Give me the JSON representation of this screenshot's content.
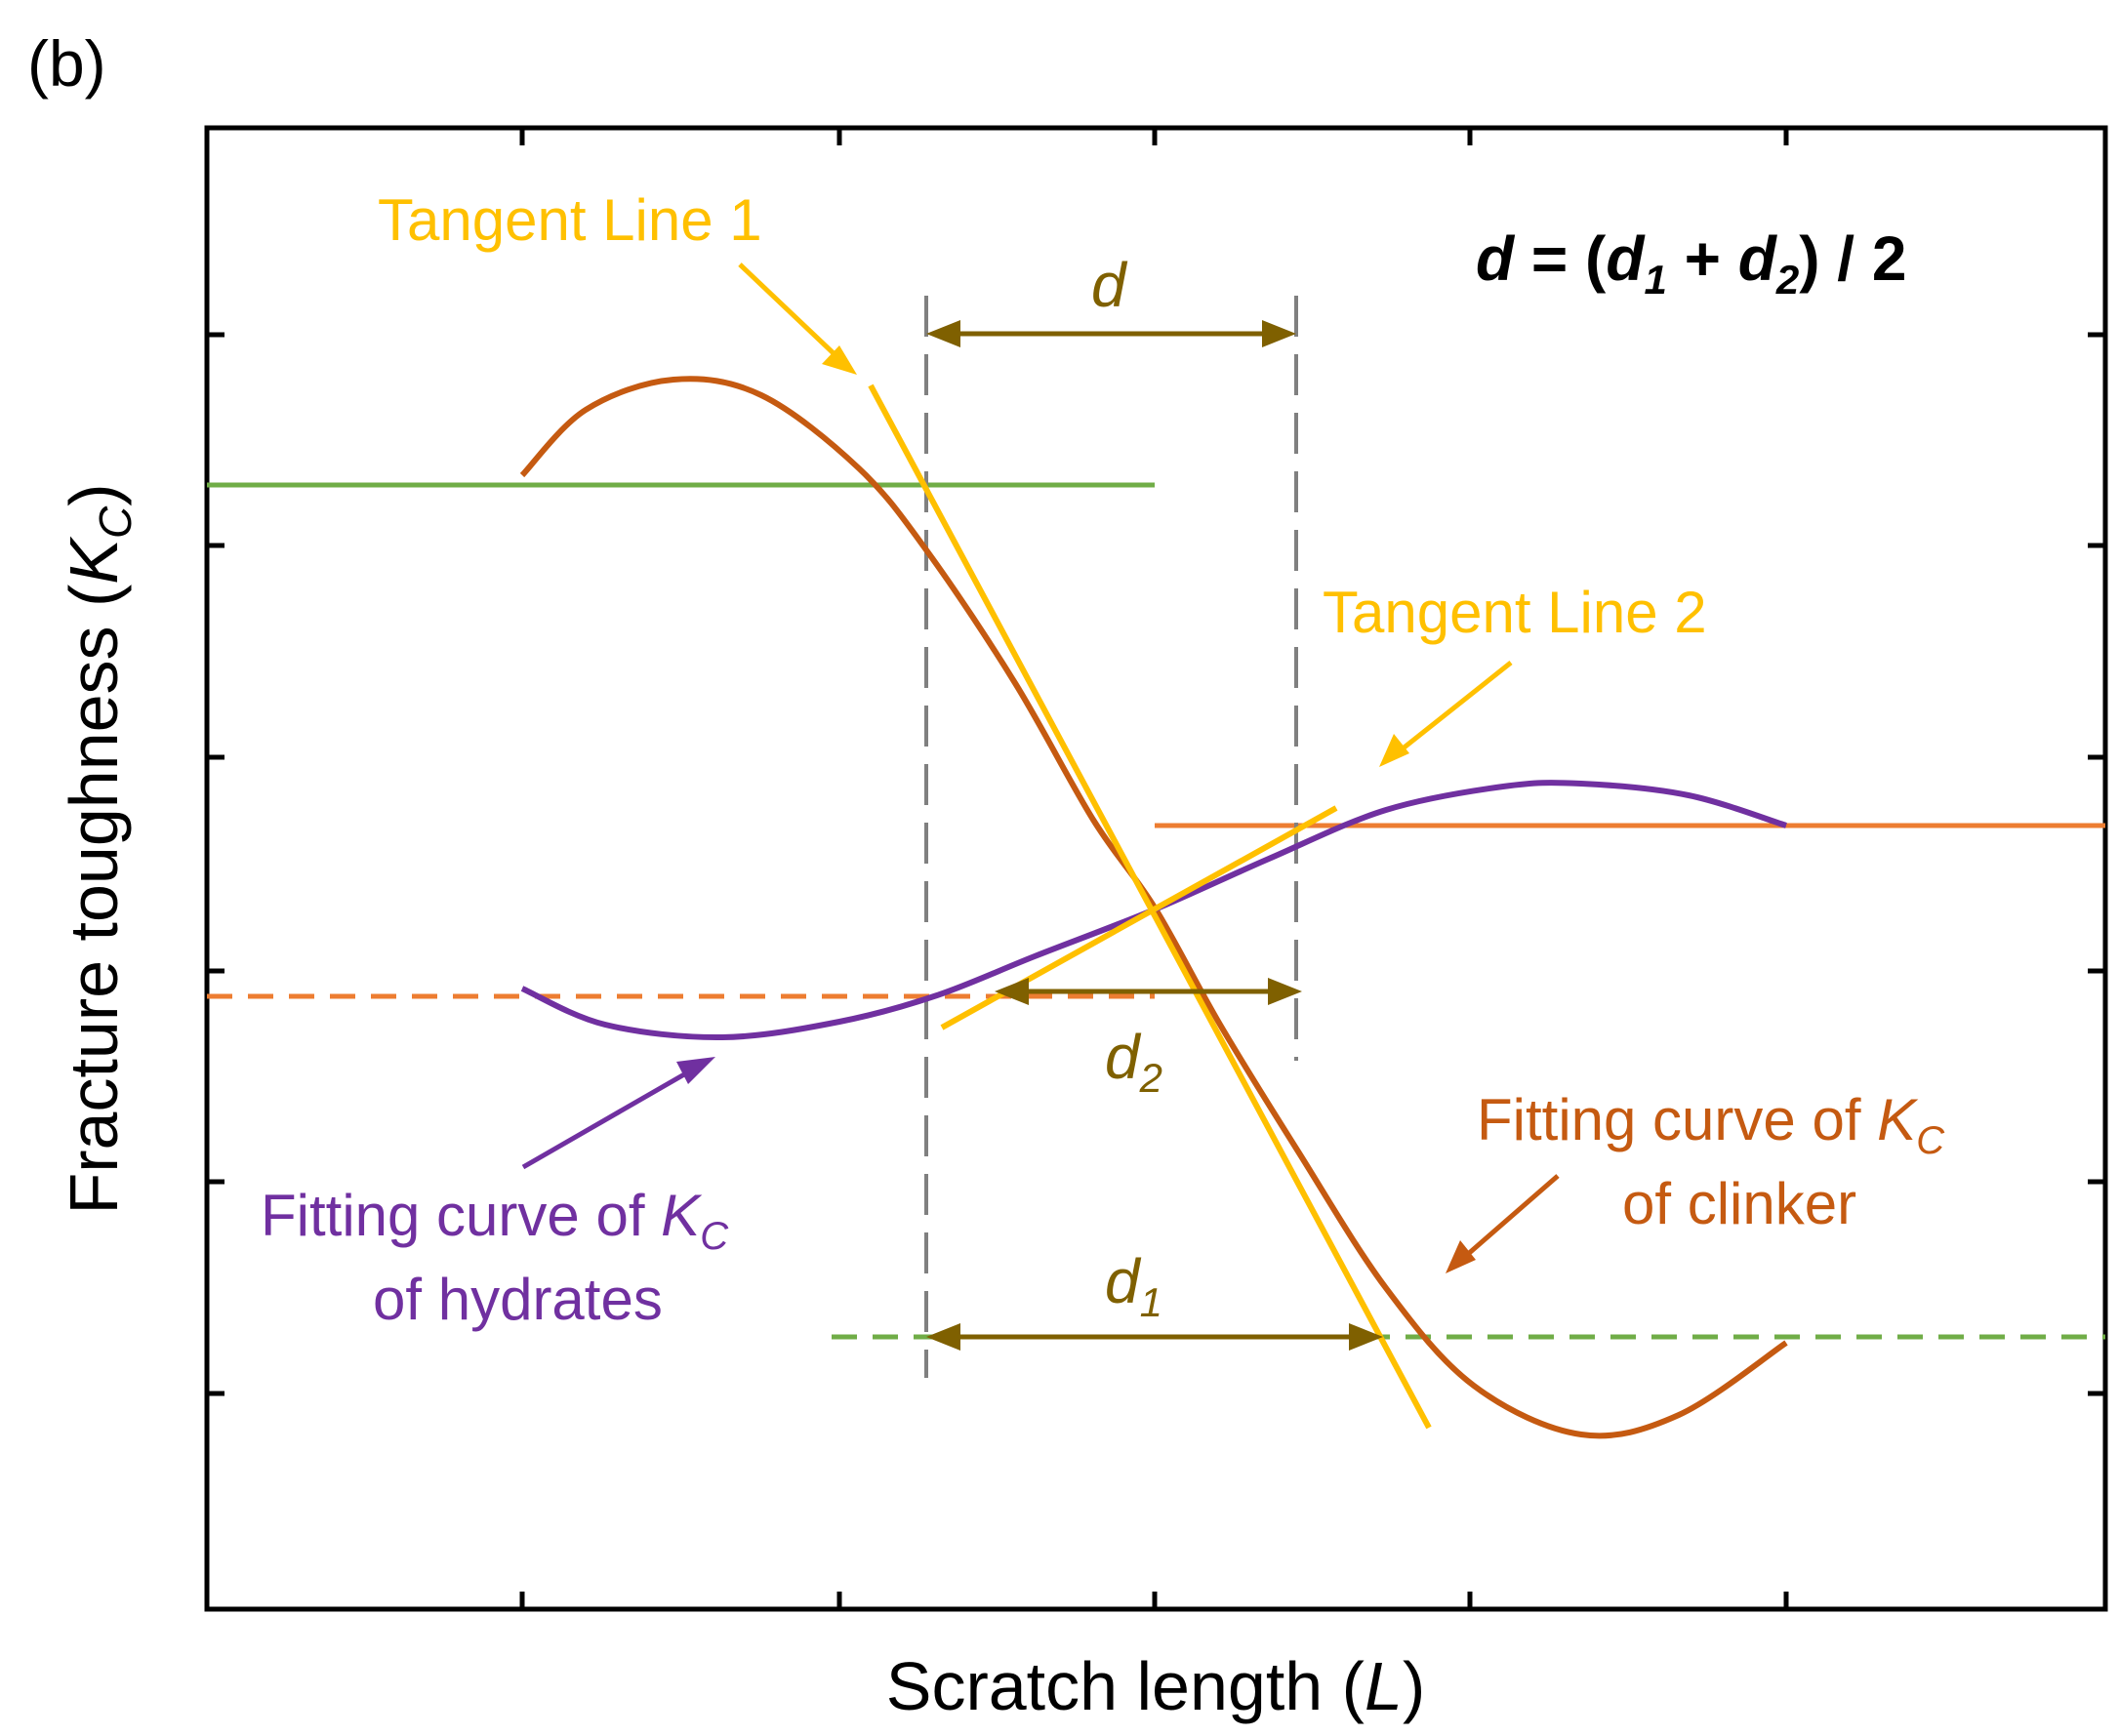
{
  "panel_label": "(b)",
  "axes": {
    "xlabel_main": "Scratch length (",
    "xlabel_var": "L",
    "xlabel_close": ")",
    "ylabel_main": "Fracture toughness (",
    "ylabel_var": "K",
    "ylabel_sub": "C",
    "ylabel_close": ")"
  },
  "formula": {
    "d": "d",
    "eq": " = (",
    "d1": "d",
    "sub1": "1",
    "plus": " + ",
    "d2": "d",
    "sub2": "2",
    "tail": ") / 2"
  },
  "annotations": {
    "tangent1": "Tangent Line 1",
    "tangent2": "Tangent Line 2",
    "d_label": "d",
    "d1_var": "d",
    "d1_sub": "1",
    "d2_var": "d",
    "d2_sub": "2",
    "clinker_line1_pre": "Fitting curve of ",
    "clinker_K": "K",
    "clinker_sub": "C",
    "clinker_line2": "of clinker",
    "hydrates_line1_pre": "Fitting curve of ",
    "hydrates_K": "K",
    "hydrates_sub": "C",
    "hydrates_line2": "of hydrates"
  },
  "colors": {
    "clinker_curve": "#c55a11",
    "hydrates_curve": "#7030a0",
    "tangent": "#ffc000",
    "green": "#70ad47",
    "orange": "#ed7d31",
    "guide": "#808080",
    "dimension": "#7f6000",
    "axis": "#000000"
  }
}
